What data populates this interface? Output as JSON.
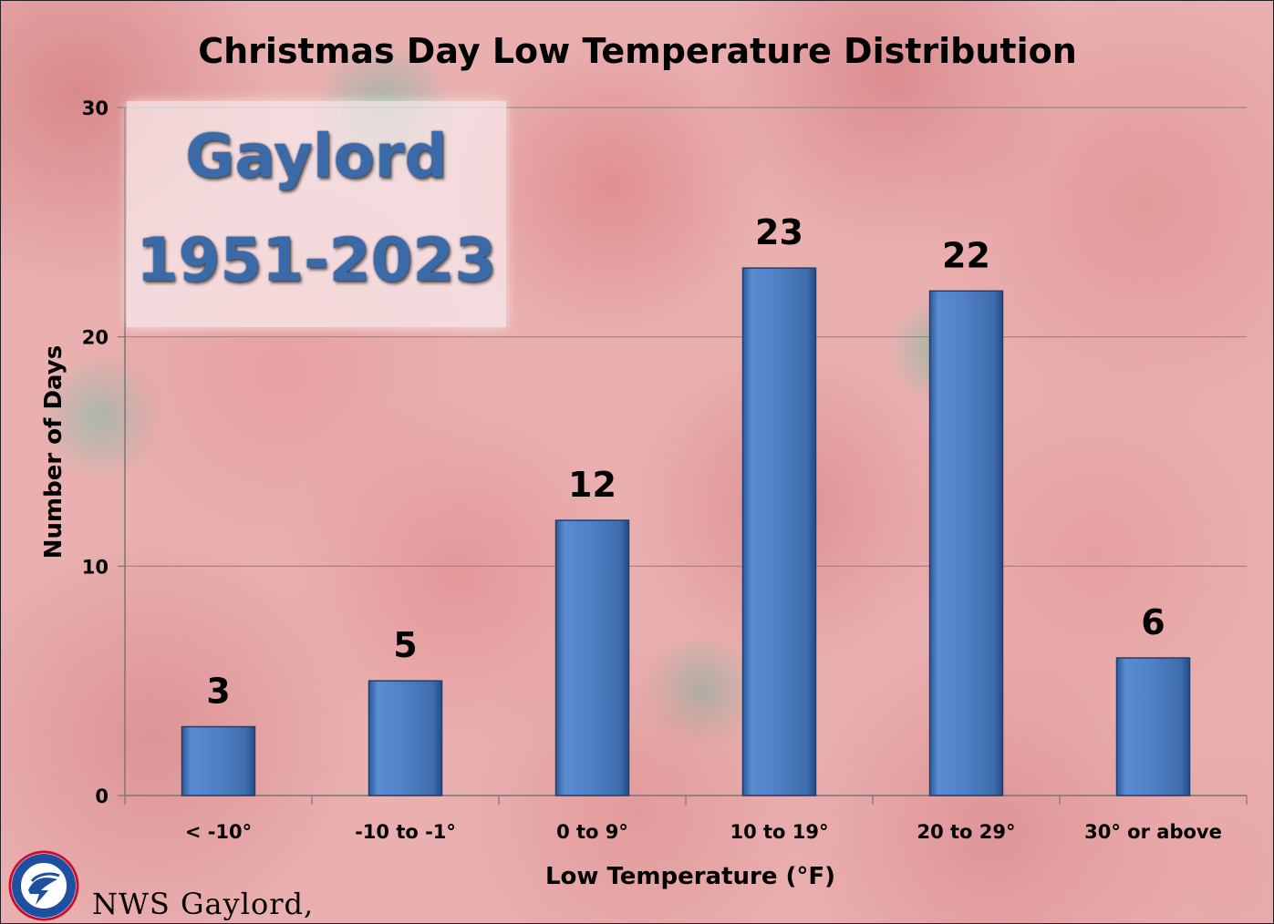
{
  "chart_data": {
    "type": "bar",
    "title": "Christmas Day Low Temperature Distribution",
    "xlabel": "Low Temperature (°F)",
    "ylabel": "Number of Days",
    "categories": [
      "< -10°",
      "-10 to -1°",
      "0 to 9°",
      "10 to 19°",
      "20 to 29°",
      "30° or above"
    ],
    "values": [
      3,
      5,
      12,
      23,
      22,
      6
    ],
    "ylim": [
      0,
      30
    ],
    "yticks": [
      "0",
      "10",
      "20",
      "30"
    ],
    "grid": true,
    "bar_color": "#4f7fc4"
  },
  "overlay": {
    "station": "Gaylord",
    "years": "1951-2023"
  },
  "credit": {
    "text": "NWS Gaylord,"
  },
  "logo": {
    "icon": "nws-logo-icon"
  }
}
